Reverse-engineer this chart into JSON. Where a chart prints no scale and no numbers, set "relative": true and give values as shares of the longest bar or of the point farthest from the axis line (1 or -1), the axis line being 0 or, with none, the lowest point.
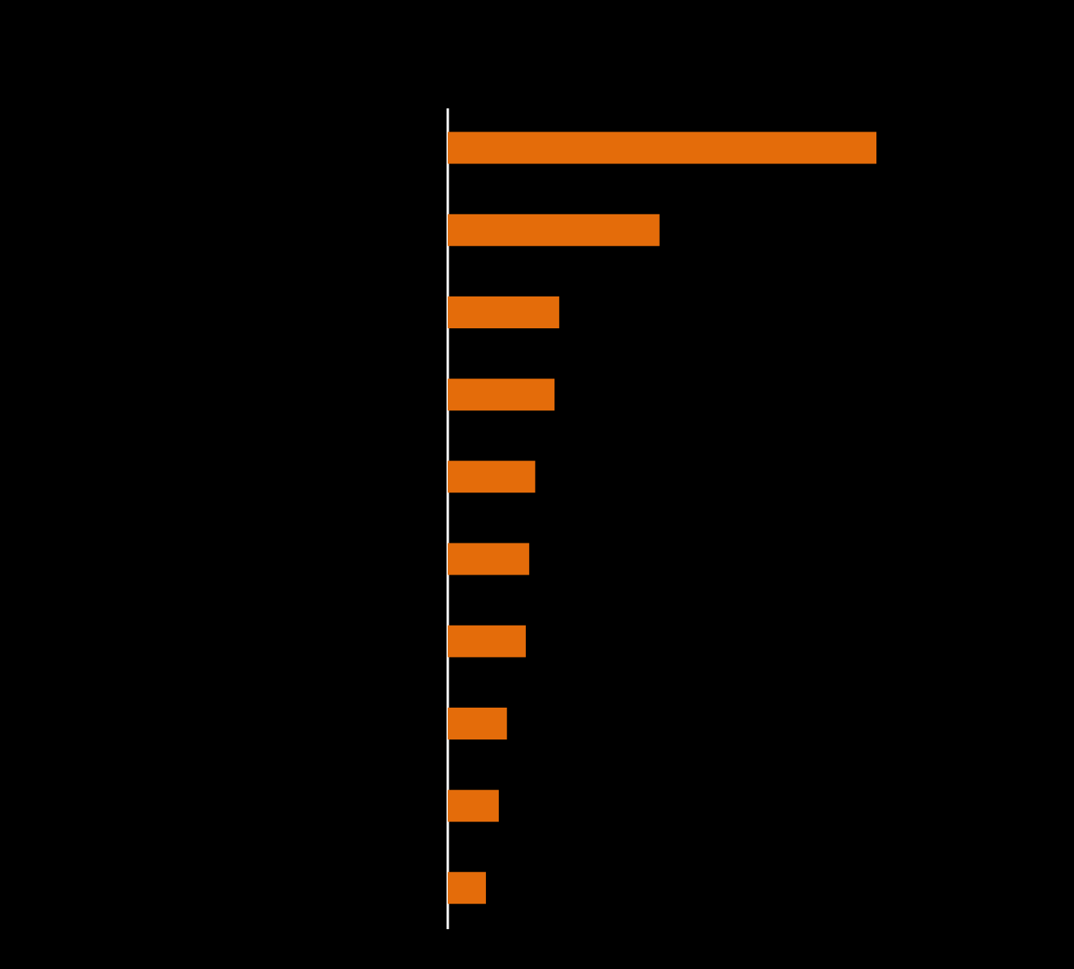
{
  "chart_data": {
    "type": "bar",
    "orientation": "horizontal",
    "relative": true,
    "categories": [
      null,
      null,
      null,
      null,
      null,
      null,
      null,
      null,
      null,
      null
    ],
    "values": [
      1,
      0.494,
      0.26,
      0.249,
      0.204,
      0.19,
      0.182,
      0.138,
      0.119,
      0.089
    ],
    "color": "#e46c0a"
  }
}
